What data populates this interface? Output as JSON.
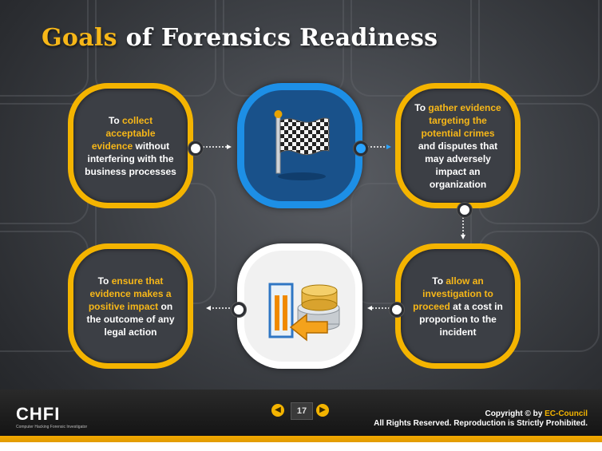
{
  "title": {
    "accent": "Goals",
    "rest": "of Forensics Readiness"
  },
  "cards": {
    "collect": {
      "pre": "To ",
      "hl": "collect acceptable evidence",
      "post": " without interfering with the business processes"
    },
    "gather": {
      "pre": "To ",
      "hl": "gather evidence targeting the potential crimes",
      "post": " and disputes that may adversely impact an organization"
    },
    "allow": {
      "pre": "To ",
      "hl": "allow an investigation to proceed",
      "post": " at a cost in proportion to the incident"
    },
    "ensure": {
      "pre": "To ",
      "hl": "ensure that evidence makes a positive impact",
      "post": " on the outcome of any legal action"
    }
  },
  "icons": {
    "top_center": "checkered-flag-icon",
    "bottom_center": "coins-cost-icon"
  },
  "footer": {
    "logo_text": "CHFI",
    "logo_sub": "Computer Hacking Forensic Investigator",
    "prev_glyph": "◀",
    "next_glyph": "▶",
    "page": "17",
    "copyright_prefix": "Copyright © by ",
    "copyright_brand": "EC-Council",
    "rights": "All Rights Reserved. Reproduction is Strictly Prohibited."
  },
  "colors": {
    "accent": "#f4b400",
    "blue_frame": "#1d8fe6",
    "background": "#3e4146"
  }
}
